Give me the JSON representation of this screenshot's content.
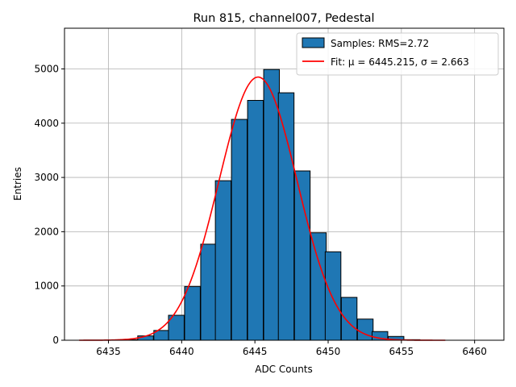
{
  "chart_data": {
    "type": "bar",
    "title": "Run 815, channel007, Pedestal",
    "xlabel": "ADC Counts",
    "ylabel": "Entries",
    "xlim": [
      6432,
      6462
    ],
    "ylim": [
      0,
      5750
    ],
    "xticks": [
      6435,
      6440,
      6445,
      6450,
      6455,
      6460
    ],
    "yticks": [
      0,
      1000,
      2000,
      3000,
      4000,
      5000
    ],
    "grid": true,
    "legend_position": "top-right",
    "bin_width": 1.07,
    "series": [
      {
        "name": "Samples: RMS=2.72",
        "kind": "histogram",
        "color": "#1f77b4",
        "edge_color": "#000000",
        "bin_left": [
          6435.9,
          6437.0,
          6438.1,
          6439.1,
          6440.2,
          6441.3,
          6442.3,
          6443.4,
          6444.5,
          6445.6,
          6446.6,
          6447.7,
          6448.8,
          6449.8,
          6450.9,
          6452.0,
          6453.0
        ],
        "values": [
          10,
          80,
          180,
          460,
          990,
          1770,
          2940,
          4070,
          4420,
          4990,
          4560,
          3120,
          1980,
          1630,
          790,
          390,
          160
        ]
      },
      {
        "name": "Fit: μ = 6445.215, σ = 2.663",
        "kind": "gaussian",
        "color": "#ff0000",
        "mu": 6445.215,
        "sigma": 2.663,
        "amplitude": 4850,
        "x_range": [
          6433,
          6458
        ]
      }
    ],
    "extra_bins": [
      {
        "left": 6454.1,
        "value": 70
      },
      {
        "left": 6455.2,
        "value": 10
      }
    ]
  }
}
